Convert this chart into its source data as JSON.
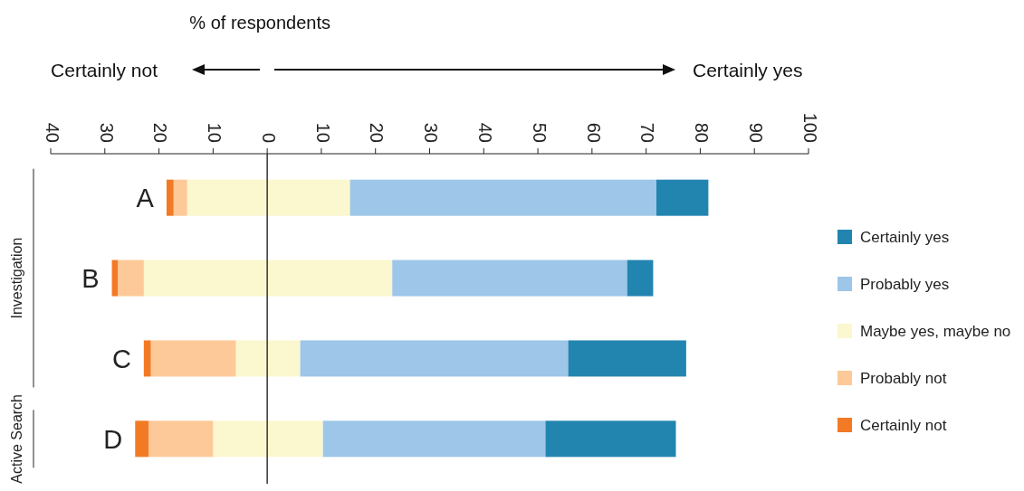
{
  "chart_data": {
    "type": "bar",
    "orientation": "horizontal",
    "stacked": true,
    "xlabel": "% of respondents",
    "categories": [
      "A",
      "B",
      "C",
      "D"
    ],
    "series": [
      {
        "color": "#fbf7ce",
        "values": [
          -14.8,
          -22.8,
          -5.8,
          -10.0
        ]
      },
      {
        "name": "Maybe yes, maybe no",
        "color": "#fbf7ce",
        "values": [
          15.3,
          23.1,
          6.1,
          10.3
        ]
      },
      {
        "name": "Probably not",
        "color": "#fdc998",
        "values": [
          -2.5,
          -4.8,
          -15.7,
          -11.9
        ]
      },
      {
        "name": "Probably yes",
        "color": "#9dc6e9",
        "values": [
          56.6,
          43.4,
          49.5,
          41.1
        ]
      },
      {
        "name": "Certainly not",
        "color": "#f37a25",
        "values": [
          -1.3,
          -1.1,
          -1.3,
          -2.5
        ]
      },
      {
        "name": "Certainly yes",
        "color": "#2285b0",
        "values": [
          9.6,
          4.8,
          21.8,
          24.1
        ]
      }
    ],
    "xlim": [
      -40,
      100
    ],
    "xticks": [
      {
        "value": -40,
        "label": "40"
      },
      {
        "value": -30,
        "label": "30"
      },
      {
        "value": -20,
        "label": "20"
      },
      {
        "value": -10,
        "label": "10"
      },
      0,
      10,
      20,
      30,
      40,
      50,
      60,
      70,
      80,
      90,
      100
    ],
    "ref_lines": [
      {
        "axis": "x",
        "value": 0,
        "color": "#333333"
      }
    ],
    "annotations": [
      "Certainly not",
      "Certainly yes",
      "Investigation",
      "Active Search"
    ],
    "legend": "right",
    "grid": false
  }
}
